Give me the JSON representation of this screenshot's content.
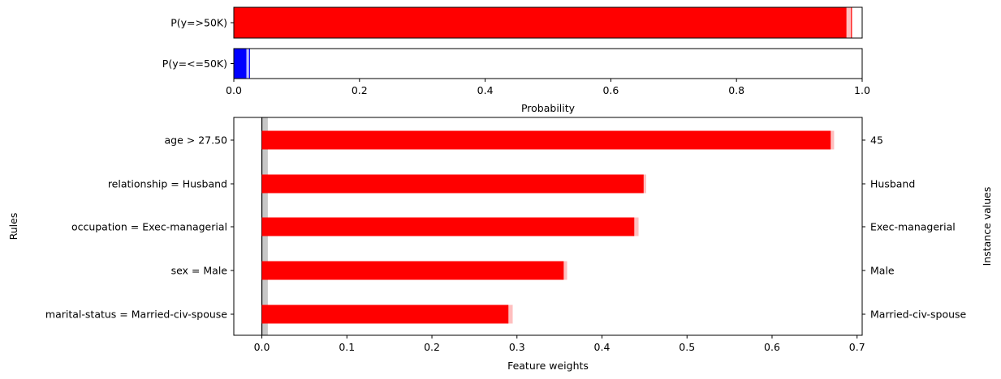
{
  "chart_data": [
    {
      "type": "bar",
      "orientation": "horizontal",
      "categories": [
        "P(y=>50K)",
        "P(y=<=50K)"
      ],
      "values": [
        0.975,
        0.02
      ],
      "uncertainty_high": [
        0.983,
        0.025
      ],
      "colors": [
        "#ff0000",
        "#0000ff"
      ],
      "xlabel": "Probability",
      "xlim": [
        0,
        1
      ],
      "xticks": [
        "0.0",
        "0.2",
        "0.4",
        "0.6",
        "0.8",
        "1.0"
      ],
      "grid": false
    },
    {
      "type": "bar",
      "orientation": "horizontal",
      "categories": [
        "age > 27.50",
        "relationship = Husband",
        "occupation = Exec-managerial",
        "sex = Male",
        "marital-status = Married-civ-spouse"
      ],
      "values": [
        0.669,
        0.449,
        0.438,
        0.355,
        0.29
      ],
      "uncertainty": [
        [
          0.669,
          0.673
        ],
        [
          0.449,
          0.452
        ],
        [
          0.438,
          0.443
        ],
        [
          0.355,
          0.359
        ],
        [
          0.29,
          0.295
        ]
      ],
      "instance_values": [
        "45",
        "Husband",
        "Exec-managerial",
        "Male",
        "Married-civ-spouse"
      ],
      "baseline_band": [
        0.0,
        0.007
      ],
      "color": "#ff0000",
      "xlabel": "Feature weights",
      "ylabel": "Rules",
      "y2label": "Instance values",
      "xlim": [
        -0.033,
        0.706
      ],
      "xticks": [
        "0.0",
        "0.1",
        "0.2",
        "0.3",
        "0.4",
        "0.5",
        "0.6",
        "0.7"
      ],
      "grid": false
    }
  ]
}
